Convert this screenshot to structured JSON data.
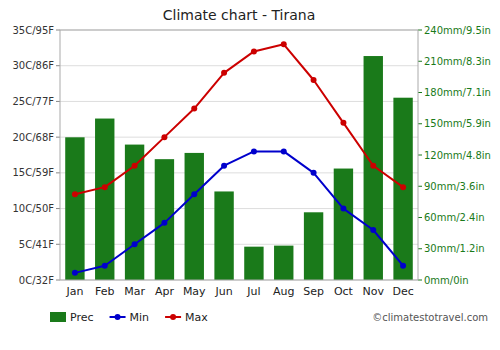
{
  "chart_data": {
    "type": "combo",
    "title": "Climate chart - Tirana",
    "categories": [
      "Jan",
      "Feb",
      "Mar",
      "Apr",
      "May",
      "Jun",
      "Jul",
      "Aug",
      "Sep",
      "Oct",
      "Nov",
      "Dec"
    ],
    "series": [
      {
        "name": "Prec",
        "type": "bar",
        "axis": "y2",
        "color": "#1a7a1a",
        "values": [
          137,
          155,
          130,
          116,
          122,
          85,
          32,
          33,
          65,
          107,
          215,
          175
        ]
      },
      {
        "name": "Min",
        "type": "line",
        "color": "#0000cc",
        "marker": "circle",
        "values": [
          1,
          2,
          5,
          8,
          12,
          16,
          18,
          18,
          15,
          10,
          7,
          2
        ]
      },
      {
        "name": "Max",
        "type": "line",
        "color": "#cc0000",
        "marker": "circle",
        "values": [
          12,
          13,
          16,
          20,
          24,
          29,
          32,
          33,
          28,
          22,
          16,
          13
        ]
      }
    ],
    "ylim": [
      0,
      35
    ],
    "yticks": [
      {
        "value": 0,
        "label": "0C/32F"
      },
      {
        "value": 5,
        "label": "5C/41F"
      },
      {
        "value": 10,
        "label": "10C/50F"
      },
      {
        "value": 15,
        "label": "15C/59F"
      },
      {
        "value": 20,
        "label": "20C/68F"
      },
      {
        "value": 25,
        "label": "25C/77F"
      },
      {
        "value": 30,
        "label": "30C/86F"
      },
      {
        "value": 35,
        "label": "35C/95F"
      }
    ],
    "y2lim": [
      0,
      240
    ],
    "y2ticks": [
      {
        "value": 0,
        "label": "0mm/0in"
      },
      {
        "value": 30,
        "label": "30mm/1.2in"
      },
      {
        "value": 60,
        "label": "60mm/2.4in"
      },
      {
        "value": 90,
        "label": "90mm/3.6in"
      },
      {
        "value": 120,
        "label": "120mm/4.8in"
      },
      {
        "value": 150,
        "label": "150mm/5.9in"
      },
      {
        "value": 180,
        "label": "180mm/7.1in"
      },
      {
        "value": 210,
        "label": "210mm/8.3in"
      },
      {
        "value": 240,
        "label": "240mm/9.5in"
      }
    ],
    "grid": true,
    "legend": "lower left",
    "annotations": [
      "©climatestotravel.com"
    ]
  }
}
